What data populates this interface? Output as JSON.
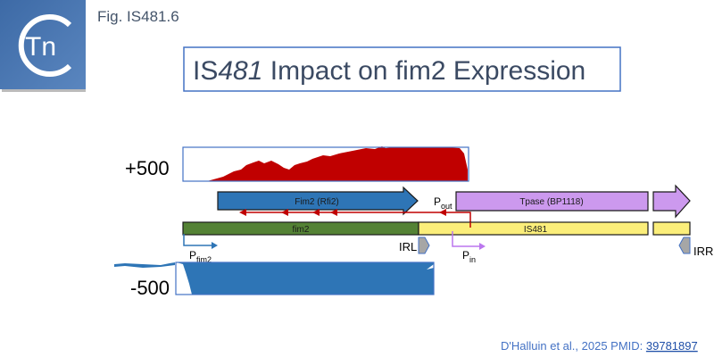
{
  "logo": {
    "text": "Tn",
    "letter": "C"
  },
  "figure_label": "Fig. IS481.6",
  "title": {
    "prefix": "IS",
    "italic": "481",
    "rest": " Impact on fim2 Expression"
  },
  "coverage": {
    "plus_label": "+500",
    "minus_label": "-500",
    "plus_color": "#c00000",
    "minus_color": "#2e75b6"
  },
  "genes": {
    "fim2_protein": "Fim2 (Rfi2)",
    "tpase_protein": "Tpase (BP1118)",
    "fim2_gene": "fim2",
    "is_element": "IS481"
  },
  "promoters": {
    "pout": {
      "main": "P",
      "sub": "out"
    },
    "pin": {
      "main": "P",
      "sub": "in"
    },
    "pfim2": {
      "main": "P",
      "sub": "fim2"
    }
  },
  "inverted_repeats": {
    "left": "IRL",
    "right": "IRR"
  },
  "colors": {
    "fim2_gene": "#548235",
    "is481": "#fbee7a",
    "fim2_arrow": "#2e75b6",
    "tpase": "#cc99ee",
    "transcript": "#c00000",
    "pin": "#bb77ee",
    "ir": "#a6a6a6",
    "text": "#44546a",
    "accent": "#4472c4"
  },
  "citation": {
    "text": "D'Halluin et al., 2025 PMID: ",
    "link": "39781897"
  }
}
